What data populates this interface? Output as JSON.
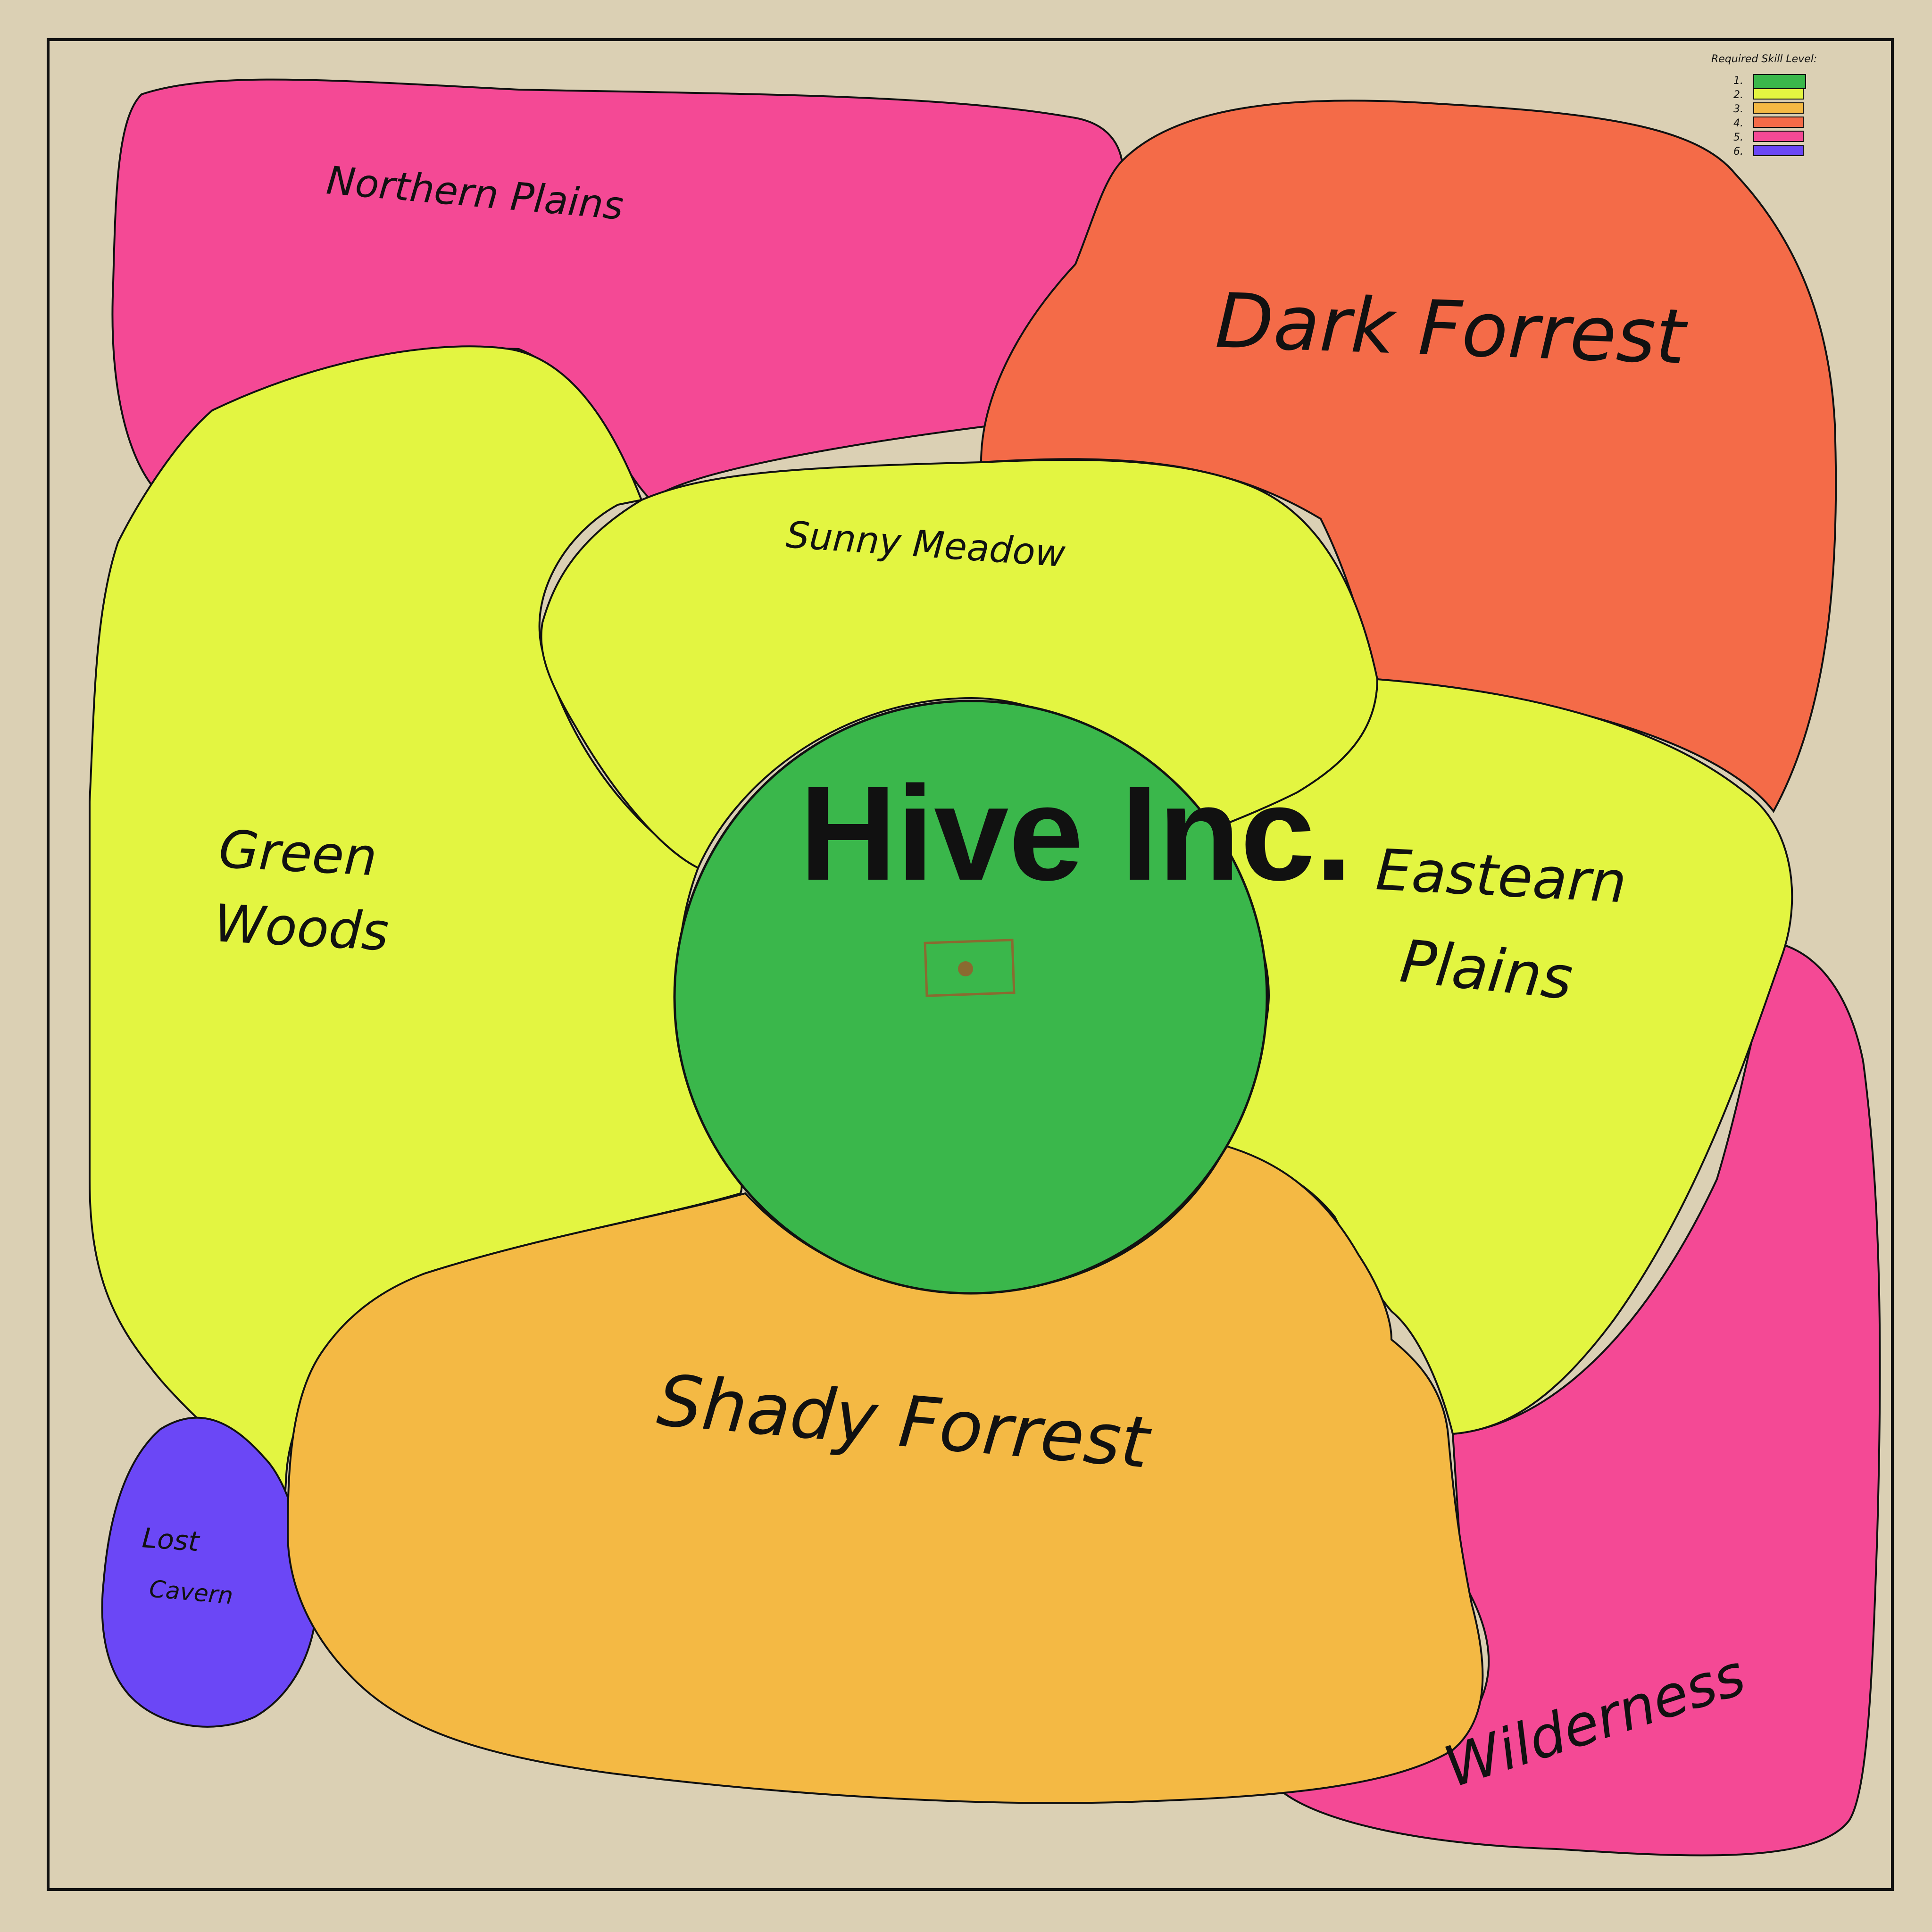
{
  "map": {
    "title": "Hive Inc."
  },
  "regions": [
    {
      "id": "northern-plains",
      "label": "Northern Plains",
      "lines": [
        "Northern Plains"
      ],
      "skill_level": 5
    },
    {
      "id": "dark-forest",
      "label": "Dark Forrest",
      "lines": [
        "Dark Forrest"
      ],
      "skill_level": 4
    },
    {
      "id": "green-woods",
      "label": "Green Woods",
      "lines": [
        "Green",
        "Woods"
      ],
      "skill_level": 2
    },
    {
      "id": "sunny-meadow",
      "label": "Sunny Meadow",
      "lines": [
        "Sunny Meadow"
      ],
      "skill_level": 2
    },
    {
      "id": "eastern-plains",
      "label": "Eastearn Plains",
      "lines": [
        "Eastearn",
        "Plains"
      ],
      "skill_level": 2
    },
    {
      "id": "wilderness",
      "label": "Wilderness",
      "lines": [
        "Wilderness"
      ],
      "skill_level": 5
    },
    {
      "id": "shady-forest",
      "label": "Shady Forrest",
      "lines": [
        "Shady Forrest"
      ],
      "skill_level": 3
    },
    {
      "id": "lost-cavern",
      "label": "Lost Cavern",
      "lines": [
        "Lost",
        "Cavern"
      ],
      "skill_level": 6
    },
    {
      "id": "hive-inc",
      "label": "Hive Inc.",
      "lines": [
        "Hive Inc."
      ],
      "skill_level": 1
    }
  ],
  "legend": {
    "title": "Required Skill Level:",
    "items": [
      {
        "label": "1.",
        "color": "#3ab74b"
      },
      {
        "label": "2.",
        "color": "#e3f541"
      },
      {
        "label": "3.",
        "color": "#f4b944"
      },
      {
        "label": "4.",
        "color": "#f46b48"
      },
      {
        "label": "5.",
        "color": "#f44995"
      },
      {
        "label": "6.",
        "color": "#6b47f6"
      }
    ]
  },
  "colors": {
    "background": "#dbd0b4",
    "border": "#111111",
    "hive_marker": "#8a6a30"
  }
}
